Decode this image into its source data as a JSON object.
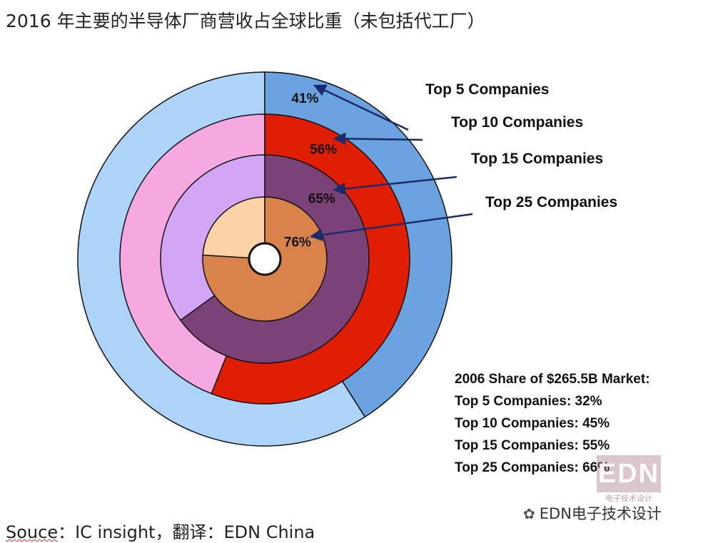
{
  "title": "2016 年主要的半导体厂商营收占全球比重（未包括代工厂）",
  "chart_data": {
    "type": "pie",
    "variant": "concentric-rings",
    "rings": [
      {
        "name": "Top 5 Companies",
        "value": 41,
        "label": "41%",
        "color": "#6aa3e0",
        "rest_color": "#aed3f8"
      },
      {
        "name": "Top 10 Companies",
        "value": 56,
        "label": "56%",
        "color": "#e01e04",
        "rest_color": "#f6a9e0"
      },
      {
        "name": "Top 15 Companies",
        "value": 65,
        "label": "65%",
        "color": "#7a4276",
        "rest_color": "#d2a6f4"
      },
      {
        "name": "Top 25 Companies",
        "value": 76,
        "label": "76%",
        "color": "#d9834a",
        "rest_color": "#fbd3a6"
      }
    ],
    "side_note": {
      "heading": "2006 Share of $265.5B Market:",
      "lines": [
        "Top 5 Companies: 32%",
        "Top 10 Companies: 45%",
        "Top 15 Companies: 55%",
        "Top 25 Companies: 66%"
      ]
    }
  },
  "source": {
    "prefix": "Souce",
    "rest": "：IC insight，翻译：EDN China"
  },
  "watermark": {
    "logo": "EDN",
    "sub": "电子技术设计",
    "account": "EDN电子技术设计",
    "icon": "wechat-icon"
  }
}
